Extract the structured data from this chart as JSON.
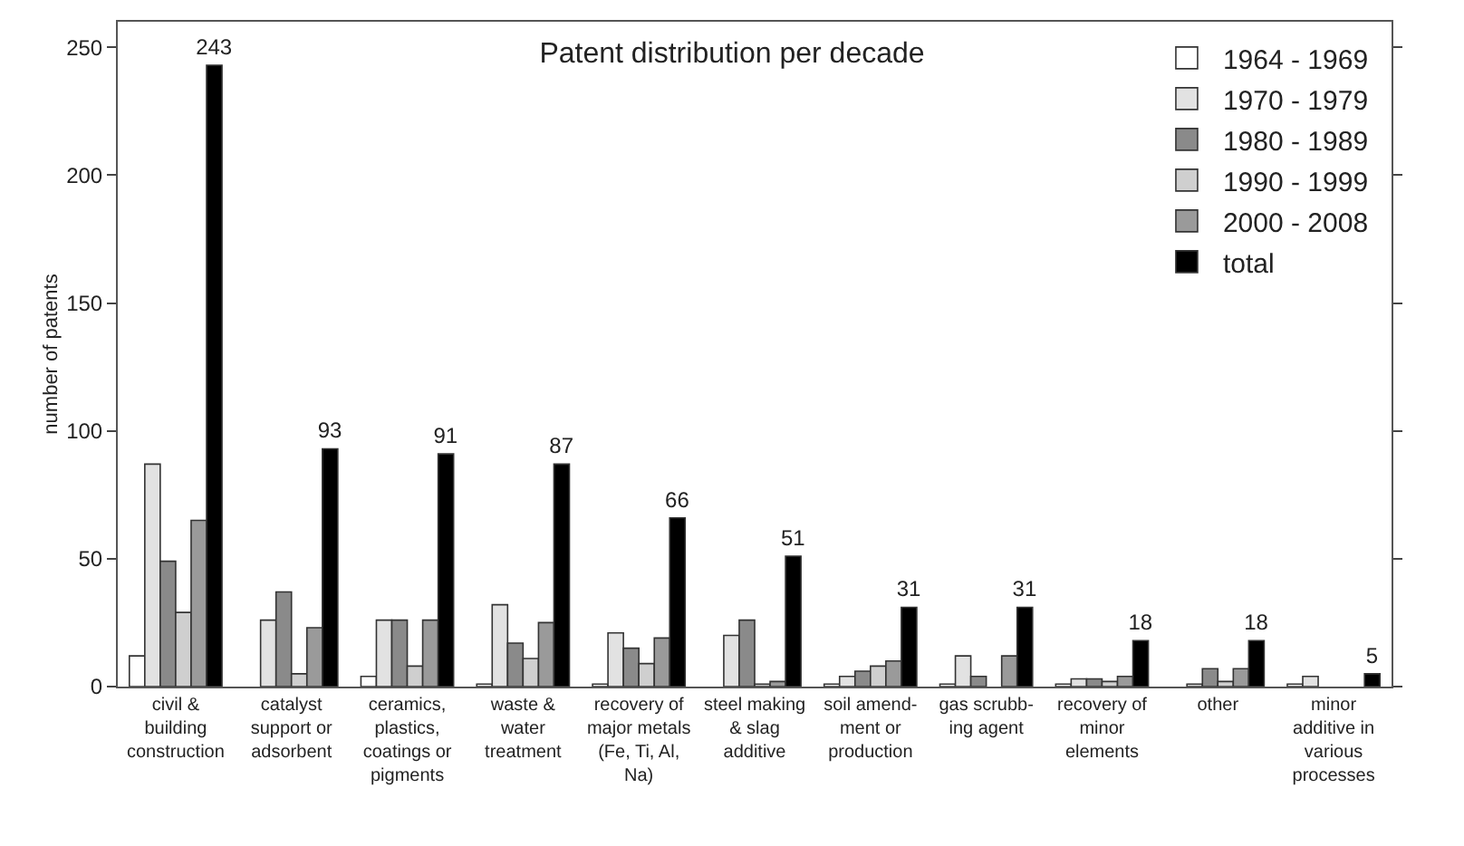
{
  "chart_data": {
    "type": "bar",
    "title": "Patent distribution per decade",
    "ylabel": "number of patents",
    "categories": [
      "civil & building construction",
      "catalyst support or adsorbent",
      "ceramics, plastics, coatings or pigments",
      "waste & water treatment",
      "recovery of major metals (Fe, Ti, Al, Na)",
      "steel making & slag additive",
      "soil amend- ment or production",
      "gas scrubb- ing agent",
      "recovery of minor elements",
      "other",
      "minor additive in various processes"
    ],
    "series": [
      {
        "name": "1964 - 1969",
        "color": "#ffffff",
        "values": [
          12,
          0,
          4,
          1,
          1,
          0,
          1,
          1,
          1,
          0,
          1
        ]
      },
      {
        "name": "1970 - 1979",
        "color": "#e2e2e2",
        "values": [
          87,
          26,
          26,
          32,
          21,
          20,
          4,
          12,
          3,
          1,
          4
        ]
      },
      {
        "name": "1980 - 1989",
        "color": "#8a8a8a",
        "values": [
          49,
          37,
          26,
          17,
          15,
          26,
          6,
          4,
          3,
          7,
          0
        ]
      },
      {
        "name": "1990 - 1999",
        "color": "#cfcfcf",
        "values": [
          29,
          5,
          8,
          11,
          9,
          1,
          8,
          0,
          2,
          2,
          0
        ]
      },
      {
        "name": "2000 - 2008",
        "color": "#9a9a9a",
        "values": [
          65,
          23,
          26,
          25,
          19,
          2,
          10,
          12,
          4,
          7,
          0
        ]
      },
      {
        "name": "total",
        "color": "#000000",
        "values": [
          243,
          93,
          91,
          87,
          66,
          51,
          31,
          31,
          18,
          18,
          5
        ],
        "value_labels": [
          "243",
          "93",
          "91",
          "87",
          "66",
          "51",
          "31",
          "31",
          "18",
          "18",
          "5"
        ]
      }
    ],
    "ylim": [
      0,
      260
    ],
    "yticks": [
      0,
      50,
      100,
      150,
      200,
      250
    ],
    "grid": false,
    "legend": "top right"
  }
}
